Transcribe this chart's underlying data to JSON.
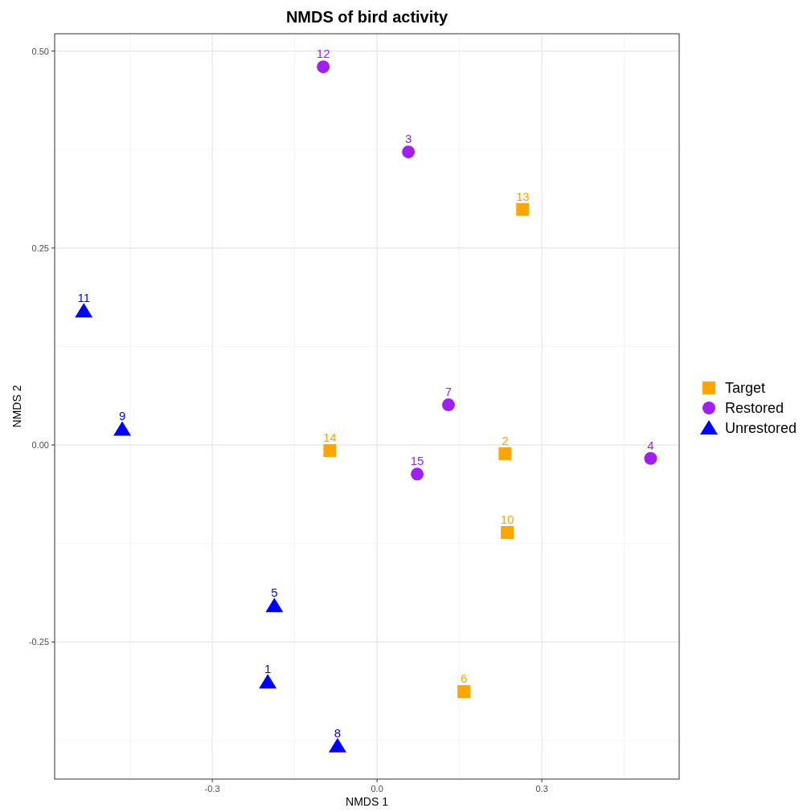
{
  "chart_data": {
    "type": "scatter",
    "title": "NMDS of bird activity",
    "xlabel": "NMDS 1",
    "ylabel": "NMDS 2",
    "xlim": [
      -0.587,
      0.55
    ],
    "ylim": [
      -0.424,
      0.522
    ],
    "xticks": [
      -0.3,
      {
        "value": 0,
        "label": "0.0"
      },
      0.3
    ],
    "yticks": [
      {
        "value": -0.25,
        "label": "-0.25"
      },
      {
        "value": 0,
        "label": "0.00"
      },
      {
        "value": 0.25,
        "label": "0.25"
      },
      {
        "value": 0.5,
        "label": "0.50"
      }
    ],
    "grid": true,
    "legend": "right",
    "series": [
      {
        "name": "Target",
        "color": "#ffa500",
        "marker": "square",
        "x": [
          -0.086,
          0.233,
          0.237,
          0.265,
          0.158
        ],
        "values": [
          -0.007,
          -0.011,
          -0.111,
          0.299,
          -0.313
        ]
      },
      {
        "name": "Restored",
        "color": "#a020f0",
        "marker": "circle",
        "x": [
          -0.098,
          0.057,
          0.13,
          0.073,
          0.498
        ],
        "values": [
          0.48,
          0.372,
          0.051,
          -0.037,
          -0.017
        ]
      },
      {
        "name": "Unrestored",
        "color": "#0000ff",
        "marker": "triangle",
        "x": [
          -0.534,
          -0.464,
          -0.187,
          -0.199,
          -0.072
        ],
        "values": [
          0.17,
          0.02,
          -0.204,
          -0.301,
          -0.382
        ]
      }
    ],
    "annotations": [
      {
        "text": "14",
        "x": -0.086,
        "y": -0.007
      },
      {
        "text": "2",
        "x": 0.233,
        "y": -0.011
      },
      {
        "text": "10",
        "x": 0.237,
        "y": -0.111
      },
      {
        "text": "13",
        "x": 0.265,
        "y": 0.299
      },
      {
        "text": "6",
        "x": 0.158,
        "y": -0.313
      },
      {
        "text": "12",
        "x": -0.098,
        "y": 0.48
      },
      {
        "text": "3",
        "x": 0.057,
        "y": 0.372
      },
      {
        "text": "7",
        "x": 0.13,
        "y": 0.051
      },
      {
        "text": "15",
        "x": 0.073,
        "y": -0.037
      },
      {
        "text": "4",
        "x": 0.498,
        "y": -0.017
      },
      {
        "text": "11",
        "x": -0.534,
        "y": 0.17
      },
      {
        "text": "9",
        "x": -0.464,
        "y": 0.02
      },
      {
        "text": "5",
        "x": -0.187,
        "y": -0.204
      },
      {
        "text": "1",
        "x": -0.199,
        "y": -0.301
      },
      {
        "text": "8",
        "x": -0.072,
        "y": -0.382
      }
    ]
  }
}
